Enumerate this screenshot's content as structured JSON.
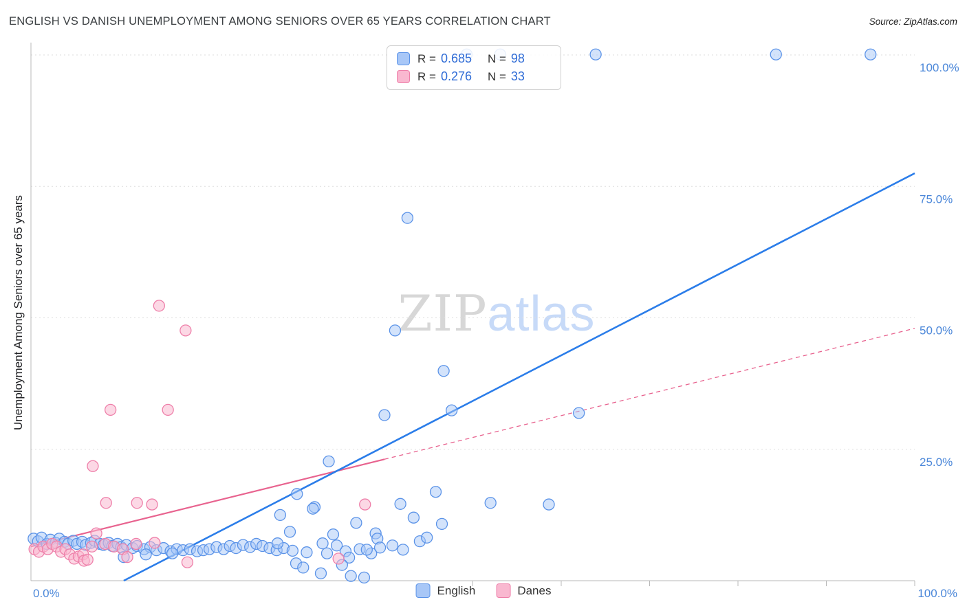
{
  "header": {
    "title": "ENGLISH VS DANISH UNEMPLOYMENT AMONG SENIORS OVER 65 YEARS CORRELATION CHART",
    "source": "Source: ZipAtlas.com"
  },
  "watermark": {
    "zip": "ZIP",
    "atlas": "atlas"
  },
  "legend_box": {
    "rows": [
      {
        "series": "English",
        "r_label": "R =",
        "r_value": "0.685",
        "n_label": "N =",
        "n_value": "98"
      },
      {
        "series": "Danes",
        "r_label": "R =",
        "r_value": "0.276",
        "n_label": "N =",
        "n_value": "33"
      }
    ]
  },
  "series_legend": {
    "english": "English",
    "danes": "Danes"
  },
  "colors": {
    "english_fill": "#a8c7f7",
    "english_stroke": "#5b93e8",
    "english_line": "#2b7de9",
    "danes_fill": "#f9b8d0",
    "danes_stroke": "#ee7fa9",
    "danes_line": "#e8638f",
    "axis_label": "#4b87d9",
    "grid": "#dedede"
  },
  "chart_data": {
    "type": "scatter",
    "title": "ENGLISH VS DANISH UNEMPLOYMENT AMONG SENIORS OVER 65 YEARS CORRELATION CHART",
    "xlabel": "",
    "ylabel": "Unemployment Among Seniors over 65 years",
    "xlim": [
      0,
      100
    ],
    "ylim": [
      0,
      105
    ],
    "grid": "horizontal-dashed",
    "legend_position": "bottom-center",
    "x_axis_labels": [
      {
        "value": 0,
        "label": "0.0%",
        "align": "left"
      },
      {
        "value": 100,
        "label": "100.0%",
        "align": "right"
      }
    ],
    "y_ticks": [
      {
        "value": 100,
        "label": "100.0%"
      },
      {
        "value": 75,
        "label": "75.0%"
      },
      {
        "value": 50,
        "label": "50.0%"
      },
      {
        "value": 25,
        "label": "25.0%"
      }
    ],
    "x_ticks": [
      50,
      60,
      70,
      80,
      90,
      100
    ],
    "series": [
      {
        "name": "English",
        "r": 0.685,
        "n": 98,
        "points": [
          [
            0.3,
            8
          ],
          [
            0.8,
            7.5
          ],
          [
            1.2,
            8.2
          ],
          [
            1.8,
            7
          ],
          [
            2.2,
            7.8
          ],
          [
            2.8,
            7.2
          ],
          [
            3.2,
            8
          ],
          [
            3.8,
            7.4
          ],
          [
            4.2,
            7
          ],
          [
            4.8,
            7.6
          ],
          [
            5.2,
            7
          ],
          [
            5.8,
            7.4
          ],
          [
            6.2,
            6.8
          ],
          [
            6.8,
            7.2
          ],
          [
            7.2,
            7.6
          ],
          [
            7.8,
            7
          ],
          [
            8.2,
            6.8
          ],
          [
            8.8,
            7.2
          ],
          [
            9.2,
            6.6
          ],
          [
            9.8,
            7
          ],
          [
            10.2,
            6.4
          ],
          [
            10.8,
            6.8
          ],
          [
            11.5,
            6.2
          ],
          [
            12,
            6.6
          ],
          [
            12.8,
            6
          ],
          [
            13.5,
            6.4
          ],
          [
            14.2,
            5.8
          ],
          [
            15,
            6.2
          ],
          [
            15.8,
            5.6
          ],
          [
            16.5,
            6
          ],
          [
            17.2,
            5.8
          ],
          [
            18,
            6
          ],
          [
            18.8,
            5.6
          ],
          [
            19.5,
            5.8
          ],
          [
            20.2,
            6
          ],
          [
            21,
            6.4
          ],
          [
            21.8,
            6
          ],
          [
            22.5,
            6.6
          ],
          [
            23.2,
            6.2
          ],
          [
            24,
            6.8
          ],
          [
            24.8,
            6.4
          ],
          [
            25.5,
            7
          ],
          [
            26.2,
            6.6
          ],
          [
            27,
            6.2
          ],
          [
            27.8,
            5.8
          ],
          [
            10.5,
            4.5
          ],
          [
            13,
            5
          ],
          [
            16,
            5.2
          ],
          [
            28.6,
            6.2
          ],
          [
            29.6,
            5.7
          ],
          [
            31.2,
            5.4
          ],
          [
            33.5,
            5.2
          ],
          [
            35.6,
            5.6
          ],
          [
            37.2,
            6
          ],
          [
            38.5,
            5.2
          ],
          [
            44,
            7.5
          ],
          [
            44.8,
            8.2
          ],
          [
            30.1,
            16.5
          ],
          [
            28.2,
            12.5
          ],
          [
            32.1,
            14
          ],
          [
            31.9,
            13.7
          ],
          [
            36.8,
            11
          ],
          [
            29.3,
            9.3
          ],
          [
            39,
            9
          ],
          [
            39.2,
            8
          ],
          [
            34.2,
            8.8
          ],
          [
            34.6,
            6.7
          ],
          [
            33,
            7.1
          ],
          [
            27.9,
            7.1
          ],
          [
            39.5,
            6.3
          ],
          [
            38,
            5.9
          ],
          [
            40.9,
            6.7
          ],
          [
            42.1,
            5.9
          ],
          [
            36,
            4.4
          ],
          [
            35.2,
            3
          ],
          [
            32.8,
            1.4
          ],
          [
            30,
            3.3
          ],
          [
            30.8,
            2.5
          ],
          [
            36.2,
            0.9
          ],
          [
            37.7,
            0.6
          ],
          [
            43.3,
            12
          ],
          [
            46.5,
            10.8
          ],
          [
            45.8,
            16.9
          ],
          [
            41.8,
            14.6
          ],
          [
            52,
            14.8
          ],
          [
            58.6,
            14.5
          ],
          [
            33.7,
            22.7
          ],
          [
            40,
            31.5
          ],
          [
            41.2,
            47.6
          ],
          [
            42.6,
            69
          ],
          [
            46.7,
            39.9
          ],
          [
            47.6,
            32.4
          ],
          [
            62,
            31.9
          ],
          [
            49.3,
            100.1
          ],
          [
            53.1,
            100.1
          ],
          [
            63.9,
            100.1
          ],
          [
            84.3,
            100.1
          ],
          [
            95,
            100.1
          ]
        ]
      },
      {
        "name": "Danes",
        "r": 0.276,
        "n": 33,
        "points": [
          [
            0.4,
            6
          ],
          [
            0.9,
            5.5
          ],
          [
            1.4,
            6.5
          ],
          [
            1.9,
            6
          ],
          [
            2.4,
            7
          ],
          [
            2.9,
            6.5
          ],
          [
            3.4,
            5.5
          ],
          [
            3.9,
            6
          ],
          [
            4.4,
            5
          ],
          [
            4.9,
            4.2
          ],
          [
            5.4,
            4.6
          ],
          [
            5.9,
            5
          ],
          [
            6,
            3.8
          ],
          [
            6.4,
            4
          ],
          [
            6.9,
            6.5
          ],
          [
            7.4,
            9
          ],
          [
            8.4,
            7
          ],
          [
            9.4,
            6.5
          ],
          [
            10.4,
            6
          ],
          [
            10.9,
            4.5
          ],
          [
            11.9,
            7
          ],
          [
            7,
            21.8
          ],
          [
            8.5,
            14.8
          ],
          [
            9,
            32.5
          ],
          [
            12,
            14.8
          ],
          [
            13.7,
            14.5
          ],
          [
            14,
            7.2
          ],
          [
            14.5,
            52.3
          ],
          [
            15.5,
            32.5
          ],
          [
            17.5,
            47.6
          ],
          [
            17.7,
            3.5
          ],
          [
            34.8,
            4.2
          ],
          [
            37.8,
            14.5
          ]
        ]
      }
    ],
    "trend_lines": [
      {
        "series": "Danes",
        "style": "dashed",
        "x1": 40,
        "y1": 23.1,
        "x2": 100,
        "y2": 48
      },
      {
        "series": "Danes",
        "style": "solid",
        "x1": 0,
        "y1": 6.5,
        "x2": 40,
        "y2": 23.1
      },
      {
        "series": "English",
        "style": "solid",
        "x1": 10.5,
        "y1": 0,
        "x2": 100,
        "y2": 77.5
      }
    ]
  }
}
